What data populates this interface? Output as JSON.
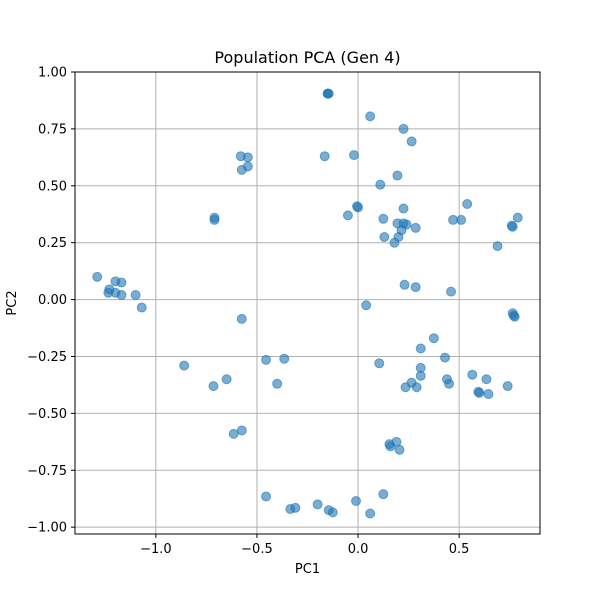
{
  "chart_data": {
    "type": "scatter",
    "title": "Population PCA (Gen 4)",
    "xlabel": "PC1",
    "ylabel": "PC2",
    "xlim": [
      -1.4,
      0.9
    ],
    "ylim": [
      -1.03,
      1.0
    ],
    "xticks": [
      -1.0,
      -0.5,
      0.0,
      0.5
    ],
    "yticks": [
      -1.0,
      -0.75,
      -0.5,
      -0.25,
      0.0,
      0.25,
      0.5,
      0.75,
      1.0
    ],
    "xtick_labels": [
      "−1.0",
      "−0.5",
      "0.0",
      "0.5"
    ],
    "ytick_labels": [
      "−1.00",
      "−0.75",
      "−0.50",
      "−0.25",
      "0.00",
      "0.25",
      "0.50",
      "0.75",
      "1.00"
    ],
    "grid": true,
    "point_color": "#1f77b4",
    "point_alpha": 0.6,
    "points": [
      {
        "x": -0.15,
        "y": 0.905
      },
      {
        "x": -0.15,
        "y": 0.905
      },
      {
        "x": -0.145,
        "y": 0.905
      },
      {
        "x": 0.06,
        "y": 0.805
      },
      {
        "x": 0.225,
        "y": 0.75
      },
      {
        "x": 0.265,
        "y": 0.695
      },
      {
        "x": -0.58,
        "y": 0.63
      },
      {
        "x": -0.545,
        "y": 0.625
      },
      {
        "x": -0.165,
        "y": 0.63
      },
      {
        "x": -0.02,
        "y": 0.635
      },
      {
        "x": -0.545,
        "y": 0.585
      },
      {
        "x": -0.575,
        "y": 0.57
      },
      {
        "x": 0.195,
        "y": 0.545
      },
      {
        "x": 0.11,
        "y": 0.505
      },
      {
        "x": 0.54,
        "y": 0.42
      },
      {
        "x": 0.0,
        "y": 0.405
      },
      {
        "x": -0.005,
        "y": 0.41
      },
      {
        "x": 0.225,
        "y": 0.4
      },
      {
        "x": -0.05,
        "y": 0.37
      },
      {
        "x": 0.125,
        "y": 0.355
      },
      {
        "x": 0.47,
        "y": 0.35
      },
      {
        "x": 0.51,
        "y": 0.35
      },
      {
        "x": 0.79,
        "y": 0.36
      },
      {
        "x": -0.71,
        "y": 0.36
      },
      {
        "x": -0.71,
        "y": 0.35
      },
      {
        "x": 0.195,
        "y": 0.335
      },
      {
        "x": 0.225,
        "y": 0.335
      },
      {
        "x": 0.24,
        "y": 0.33
      },
      {
        "x": 0.76,
        "y": 0.325
      },
      {
        "x": 0.765,
        "y": 0.32
      },
      {
        "x": 0.285,
        "y": 0.315
      },
      {
        "x": 0.215,
        "y": 0.305
      },
      {
        "x": 0.2,
        "y": 0.275
      },
      {
        "x": 0.13,
        "y": 0.275
      },
      {
        "x": 0.18,
        "y": 0.25
      },
      {
        "x": 0.69,
        "y": 0.235
      },
      {
        "x": -1.29,
        "y": 0.1
      },
      {
        "x": -1.2,
        "y": 0.08
      },
      {
        "x": -1.17,
        "y": 0.075
      },
      {
        "x": -1.23,
        "y": 0.045
      },
      {
        "x": -1.235,
        "y": 0.03
      },
      {
        "x": -1.2,
        "y": 0.03
      },
      {
        "x": -1.17,
        "y": 0.02
      },
      {
        "x": -1.1,
        "y": 0.02
      },
      {
        "x": -1.07,
        "y": -0.035
      },
      {
        "x": 0.23,
        "y": 0.065
      },
      {
        "x": 0.285,
        "y": 0.055
      },
      {
        "x": 0.46,
        "y": 0.035
      },
      {
        "x": 0.04,
        "y": -0.025
      },
      {
        "x": -0.575,
        "y": -0.085
      },
      {
        "x": 0.765,
        "y": -0.06
      },
      {
        "x": 0.77,
        "y": -0.07
      },
      {
        "x": 0.775,
        "y": -0.075
      },
      {
        "x": 0.375,
        "y": -0.17
      },
      {
        "x": 0.31,
        "y": -0.215
      },
      {
        "x": 0.43,
        "y": -0.255
      },
      {
        "x": -0.455,
        "y": -0.265
      },
      {
        "x": -0.365,
        "y": -0.26
      },
      {
        "x": 0.105,
        "y": -0.28
      },
      {
        "x": -0.86,
        "y": -0.29
      },
      {
        "x": 0.31,
        "y": -0.3
      },
      {
        "x": 0.31,
        "y": -0.335
      },
      {
        "x": 0.565,
        "y": -0.33
      },
      {
        "x": -0.65,
        "y": -0.35
      },
      {
        "x": 0.44,
        "y": -0.35
      },
      {
        "x": 0.635,
        "y": -0.35
      },
      {
        "x": 0.265,
        "y": -0.365
      },
      {
        "x": 0.45,
        "y": -0.37
      },
      {
        "x": -0.4,
        "y": -0.37
      },
      {
        "x": -0.715,
        "y": -0.38
      },
      {
        "x": 0.235,
        "y": -0.385
      },
      {
        "x": 0.29,
        "y": -0.385
      },
      {
        "x": 0.74,
        "y": -0.38
      },
      {
        "x": 0.595,
        "y": -0.405
      },
      {
        "x": 0.6,
        "y": -0.41
      },
      {
        "x": 0.645,
        "y": -0.415
      },
      {
        "x": -0.615,
        "y": -0.59
      },
      {
        "x": -0.575,
        "y": -0.575
      },
      {
        "x": 0.155,
        "y": -0.635
      },
      {
        "x": 0.16,
        "y": -0.645
      },
      {
        "x": 0.19,
        "y": -0.625
      },
      {
        "x": 0.205,
        "y": -0.66
      },
      {
        "x": -0.455,
        "y": -0.865
      },
      {
        "x": 0.125,
        "y": -0.855
      },
      {
        "x": -0.01,
        "y": -0.885
      },
      {
        "x": -0.2,
        "y": -0.9
      },
      {
        "x": -0.335,
        "y": -0.92
      },
      {
        "x": -0.31,
        "y": -0.915
      },
      {
        "x": -0.145,
        "y": -0.925
      },
      {
        "x": -0.125,
        "y": -0.935
      },
      {
        "x": 0.06,
        "y": -0.94
      }
    ]
  }
}
